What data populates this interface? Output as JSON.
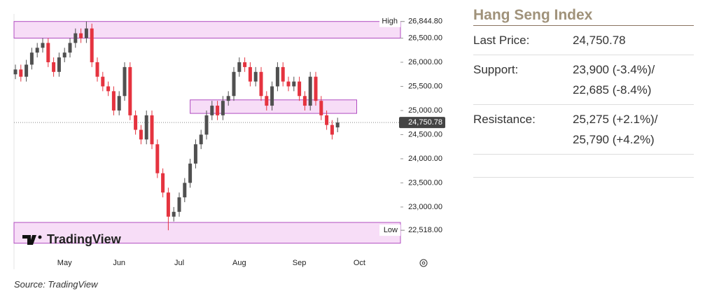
{
  "chart_data": {
    "type": "candlestick",
    "categories": [
      null,
      null,
      null,
      null,
      null,
      null,
      null,
      null,
      null,
      "May",
      null,
      null,
      null,
      null,
      null,
      null,
      null,
      null,
      null,
      "Jun",
      null,
      null,
      null,
      null,
      null,
      null,
      null,
      null,
      null,
      null,
      "Jul",
      null,
      null,
      null,
      null,
      null,
      null,
      null,
      null,
      null,
      null,
      "Aug",
      null,
      null,
      null,
      null,
      null,
      null,
      null,
      null,
      null,
      null,
      "Sep",
      null,
      null,
      null,
      null,
      null,
      null,
      null,
      null,
      null,
      null,
      "Oct"
    ],
    "open": [
      25750,
      25850,
      25700,
      25950,
      26200,
      26300,
      26400,
      26000,
      25800,
      26100,
      26200,
      26400,
      26600,
      26500,
      26700,
      26000,
      25700,
      25500,
      25400,
      25000,
      25300,
      25900,
      24900,
      24600,
      24400,
      24900,
      24300,
      23700,
      23300,
      22800,
      22900,
      23200,
      23500,
      23900,
      24300,
      24500,
      24900,
      25100,
      24900,
      25200,
      25300,
      25800,
      26000,
      25900,
      25600,
      25800,
      25300,
      25100,
      25500,
      25900,
      25600,
      25500,
      25600,
      25300,
      25100,
      25700,
      25200,
      24900,
      24700,
      24650,
      null,
      null,
      null,
      null
    ],
    "high": [
      25950,
      25950,
      26050,
      26300,
      26400,
      26500,
      26500,
      26100,
      26200,
      26300,
      26500,
      26700,
      26700,
      26844.8,
      26800,
      26100,
      25800,
      25600,
      25500,
      25400,
      26000,
      26000,
      25000,
      24700,
      25000,
      25000,
      24400,
      23800,
      23400,
      23000,
      23300,
      23600,
      24000,
      24400,
      24600,
      25000,
      25200,
      25200,
      25300,
      25400,
      25900,
      26100,
      26100,
      26000,
      25900,
      25900,
      25400,
      25600,
      26000,
      26000,
      25700,
      25700,
      25700,
      25400,
      25800,
      25800,
      25300,
      25000,
      24800,
      24850,
      null,
      null,
      null,
      null
    ],
    "low": [
      25650,
      25600,
      25600,
      25850,
      26100,
      26200,
      25900,
      25700,
      25700,
      26000,
      26100,
      26300,
      26400,
      26400,
      25900,
      25600,
      25400,
      25300,
      24900,
      24900,
      25200,
      24800,
      24500,
      24300,
      24300,
      24200,
      23600,
      23200,
      22518,
      22700,
      22800,
      23100,
      23400,
      23800,
      24200,
      24400,
      24800,
      24800,
      24800,
      25100,
      25200,
      25700,
      25800,
      25500,
      25500,
      25200,
      25000,
      25000,
      25400,
      25500,
      25400,
      25400,
      25200,
      25000,
      25000,
      25100,
      24800,
      24600,
      24400,
      24550,
      null,
      null,
      null,
      null
    ],
    "close": [
      25850,
      25700,
      25950,
      26200,
      26300,
      26400,
      26000,
      25800,
      26100,
      26200,
      26400,
      26600,
      26500,
      26700,
      26000,
      25700,
      25500,
      25400,
      25000,
      25300,
      25900,
      24900,
      24600,
      24400,
      24900,
      24300,
      23700,
      23300,
      22800,
      22900,
      23200,
      23500,
      23900,
      24300,
      24500,
      24900,
      25100,
      24900,
      25200,
      25300,
      25800,
      26000,
      25900,
      25600,
      25800,
      25300,
      25100,
      25500,
      25900,
      25600,
      25500,
      25600,
      25300,
      25100,
      25700,
      25200,
      24900,
      24700,
      24500,
      24750.78,
      null,
      null,
      null,
      null
    ],
    "up_color": "#505050",
    "down_color": "#e5333f",
    "ylim": [
      22100,
      27000
    ],
    "yticks": [
      {
        "value": 26500,
        "label": "26,500.00"
      },
      {
        "value": 26000,
        "label": "26,000.00"
      },
      {
        "value": 25500,
        "label": "25,500.00"
      },
      {
        "value": 25000,
        "label": "25,000.00"
      },
      {
        "value": 24500,
        "label": "24,500.00"
      },
      {
        "value": 24000,
        "label": "24,000.00"
      },
      {
        "value": 23500,
        "label": "23,500.00"
      },
      {
        "value": 23000,
        "label": "23,000.00"
      }
    ],
    "zones": [
      {
        "name": "High",
        "level": {
          "value": 26844.8,
          "label": "26,844.80"
        },
        "range": [
          26500,
          26844.8
        ]
      },
      {
        "name": "Low",
        "level": {
          "value": 22518,
          "label": "22,518.00"
        },
        "range": [
          22250,
          22680
        ]
      }
    ],
    "mid_zone": {
      "range": [
        24940,
        25220
      ],
      "x_range": [
        32,
        62.5
      ]
    },
    "last_price": {
      "value": 24750.78,
      "label": "24,750.78"
    },
    "watermark": "TradingView"
  },
  "source": "Source: TradingView",
  "table": {
    "title": "Hang Seng Index",
    "rows": [
      [
        "Last Price:",
        [
          "24,750.78"
        ]
      ],
      [
        "Support:",
        [
          "23,900 (-3.4%)/",
          "22,685 (-8.4%)"
        ]
      ],
      [
        "Resistance:",
        [
          "25,275 (+2.1%)/",
          "25,790 (+4.2%)"
        ]
      ]
    ]
  }
}
